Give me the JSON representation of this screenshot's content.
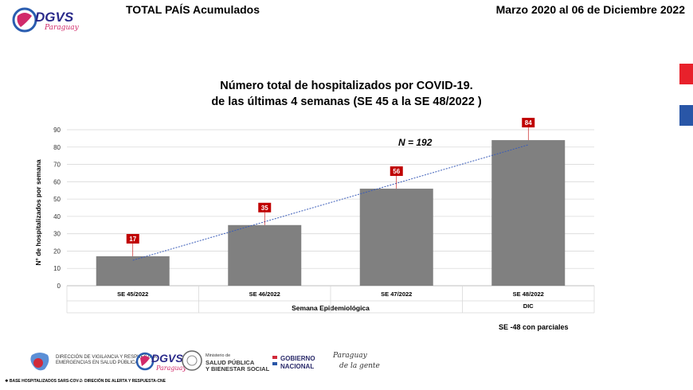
{
  "header": {
    "left_title": "TOTAL PAÍS  Acumulados",
    "right_title": "Marzo 2020 al 06 de Diciembre 2022"
  },
  "logo": {
    "name": "DGVS",
    "subtitle": "Paraguay"
  },
  "colors": {
    "bar": "#808080",
    "label_bg": "#c00000",
    "trend": "#3a5cb8",
    "flag_red": "#e8212b",
    "flag_blue": "#2956a7"
  },
  "chart_data": {
    "type": "bar",
    "title": "Número total de hospitalizados por COVID-19.",
    "subtitle": "de las últimas 4 semanas (SE 45 a la  SE 48/2022 )",
    "categories": [
      "SE 45/2022",
      "SE 46/2022",
      "SE 47/2022",
      "SE 48/2022"
    ],
    "category_sublabels": [
      "",
      "",
      "",
      "DIC"
    ],
    "values": [
      17,
      35,
      56,
      84
    ],
    "data_labels": [
      "17",
      "35",
      "56",
      "84"
    ],
    "xlabel": "Semana Epidemiológica",
    "ylabel": "N° de hospitalizados por semana",
    "ylim": [
      0,
      90
    ],
    "yticks": [
      0,
      10,
      20,
      30,
      40,
      50,
      60,
      70,
      80,
      90
    ],
    "grid": true,
    "trendline": "linear",
    "annotations": [
      "N = 192",
      "SE -48 con parciales"
    ]
  },
  "footer": {
    "source": "BASE HOSPITALIZADOS SARS-COV-2- DIRECIÓN DE ALERTA Y RESPUESTA-CNE",
    "logos": [
      {
        "line1": "DIRECCIÓN DE VIGILANCIA Y RESPUESTA A",
        "line2": "EMERGENCIAS EN SALUD PÚBLICA"
      },
      {
        "line1": "DGVS",
        "line2": "Paraguay"
      },
      {
        "line1": "Ministerio de",
        "line2": "SALUD PÚBLICA",
        "line3": "Y BIENESTAR SOCIAL"
      },
      {
        "line1": "GOBIERNO",
        "line2": "NACIONAL"
      },
      {
        "line1": "Paraguay",
        "line2": "de la gente"
      }
    ]
  }
}
